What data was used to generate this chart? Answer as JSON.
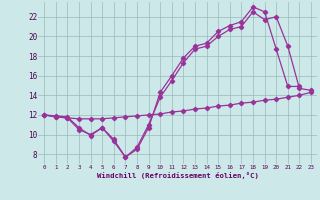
{
  "line_valley": {
    "x": [
      0,
      1,
      2,
      3,
      4,
      5,
      6,
      7,
      8,
      9,
      10,
      11,
      12,
      13,
      14,
      15,
      16,
      17,
      18,
      19,
      20,
      21,
      22
    ],
    "y": [
      12.0,
      11.9,
      11.8,
      10.7,
      9.9,
      10.7,
      9.3,
      7.7,
      8.5,
      10.7,
      14.3,
      16.0,
      17.8,
      19.0,
      19.3,
      20.5,
      21.1,
      21.5,
      23.0,
      22.5,
      18.7,
      14.9,
      14.9
    ]
  },
  "line_upper": {
    "x": [
      0,
      1,
      2,
      3,
      4,
      5,
      6,
      7,
      8,
      9,
      10,
      11,
      12,
      13,
      14,
      15,
      16,
      17,
      18,
      19,
      20,
      21,
      22,
      23
    ],
    "y": [
      12.0,
      11.8,
      11.7,
      10.5,
      10.0,
      10.7,
      9.5,
      7.7,
      8.7,
      11.0,
      13.8,
      15.5,
      17.3,
      18.7,
      19.0,
      20.0,
      20.7,
      21.0,
      22.5,
      21.7,
      22.0,
      19.0,
      14.7,
      14.5
    ]
  },
  "line_flat": {
    "x": [
      0,
      1,
      2,
      3,
      4,
      5,
      6,
      7,
      8,
      9,
      10,
      11,
      12,
      13,
      14,
      15,
      16,
      17,
      18,
      19,
      20,
      21,
      22,
      23
    ],
    "y": [
      12.0,
      11.8,
      11.7,
      11.6,
      11.6,
      11.6,
      11.7,
      11.8,
      11.9,
      12.0,
      12.1,
      12.3,
      12.4,
      12.6,
      12.7,
      12.9,
      13.0,
      13.2,
      13.3,
      13.5,
      13.6,
      13.8,
      14.0,
      14.3
    ]
  },
  "color": "#993399",
  "bg_color": "#cce8e8",
  "grid_color": "#99bbbb",
  "xlabel": "Windchill (Refroidissement éolien,°C)",
  "ylim": [
    7.0,
    23.5
  ],
  "xlim": [
    -0.5,
    23.5
  ],
  "yticks": [
    8,
    10,
    12,
    14,
    16,
    18,
    20,
    22
  ],
  "xticks": [
    0,
    1,
    2,
    3,
    4,
    5,
    6,
    7,
    8,
    9,
    10,
    11,
    12,
    13,
    14,
    15,
    16,
    17,
    18,
    19,
    20,
    21,
    22,
    23
  ],
  "xlabel_color": "#660066",
  "tick_color": "#550055",
  "marker_size": 2.2,
  "line_width": 0.9
}
